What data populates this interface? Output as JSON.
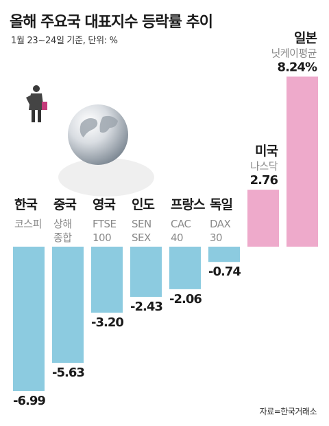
{
  "title": "올해 주요국 대표지수 등락률 추이",
  "subtitle": "1월 23~24일 기준, 단위: %",
  "source": "자료=한국거래소",
  "colors": {
    "negative": "#8ccbe0",
    "positive": "#eeaacb",
    "text": "#1a1a1a",
    "muted": "#8a8a8a"
  },
  "chart_data": {
    "type": "bar",
    "title": "올해 주요국 대표지수 등락률 추이",
    "xlabel": "",
    "ylabel": "",
    "grid": false,
    "ylim": [
      -7,
      8.5
    ],
    "categories": [
      {
        "country": "한국",
        "index": [
          "코스피"
        ],
        "value": -6.99,
        "label": "-6.99"
      },
      {
        "country": "중국",
        "index": [
          "상해",
          "종합"
        ],
        "value": -5.63,
        "label": "-5.63"
      },
      {
        "country": "영국",
        "index": [
          "FTSE",
          "100"
        ],
        "value": -3.2,
        "label": "-3.20"
      },
      {
        "country": "인도",
        "index": [
          "SEN",
          "SEX"
        ],
        "value": -2.43,
        "label": "-2.43"
      },
      {
        "country": "프랑스",
        "index": [
          "CAC",
          "40"
        ],
        "value": -2.06,
        "label": "-2.06"
      },
      {
        "country": "독일",
        "index": [
          "DAX",
          "30"
        ],
        "value": -0.74,
        "label": "-0.74"
      },
      {
        "country": "미국",
        "index": [
          "나스닥"
        ],
        "value": 2.76,
        "label": "2.76"
      },
      {
        "country": "일본",
        "index": [
          "닛케이평균"
        ],
        "value": 8.24,
        "label": "8.24%"
      }
    ]
  }
}
